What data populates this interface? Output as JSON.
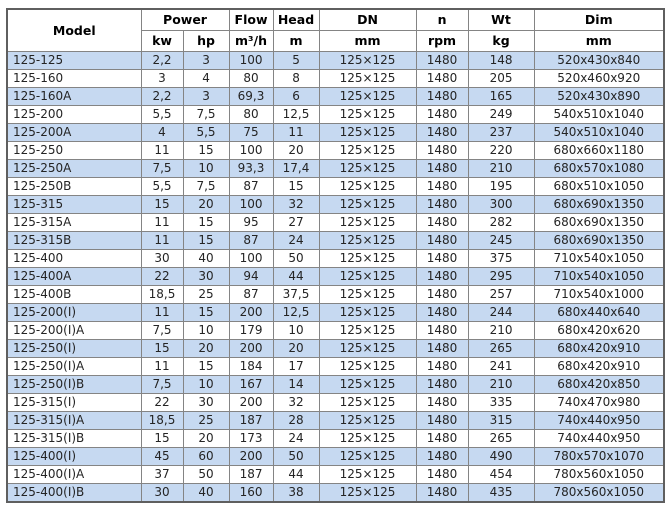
{
  "colors": {
    "row_alt_blue": "#c6d9f1",
    "row_white": "#ffffff",
    "border_inner": "#848484",
    "border_outer": "#5f5f5f",
    "header_text": "#000000",
    "body_text": "#242424"
  },
  "table": {
    "header": {
      "model": "Model",
      "power": "Power",
      "flow": "Flow",
      "head": "Head",
      "dn": "DN",
      "n": "n",
      "wt": "Wt",
      "dim": "Dim",
      "kw": "kw",
      "hp": "hp",
      "flow_unit": "m³/h",
      "head_unit": "m",
      "dn_unit": "mm",
      "n_unit": "rpm",
      "wt_unit": "kg",
      "dim_unit": "mm"
    },
    "rows": [
      [
        "125-125",
        "2,2",
        "3",
        "100",
        "5",
        "125×125",
        "1480",
        "148",
        "520x430x840"
      ],
      [
        "125-160",
        "3",
        "4",
        "80",
        "8",
        "125×125",
        "1480",
        "205",
        "520x460x920"
      ],
      [
        "125-160A",
        "2,2",
        "3",
        "69,3",
        "6",
        "125×125",
        "1480",
        "165",
        "520x430x890"
      ],
      [
        "125-200",
        "5,5",
        "7,5",
        "80",
        "12,5",
        "125×125",
        "1480",
        "249",
        "540x510x1040"
      ],
      [
        "125-200A",
        "4",
        "5,5",
        "75",
        "11",
        "125×125",
        "1480",
        "237",
        "540x510x1040"
      ],
      [
        "125-250",
        "11",
        "15",
        "100",
        "20",
        "125×125",
        "1480",
        "220",
        "680x660x1180"
      ],
      [
        "125-250A",
        "7,5",
        "10",
        "93,3",
        "17,4",
        "125×125",
        "1480",
        "210",
        "680x570x1080"
      ],
      [
        "125-250B",
        "5,5",
        "7,5",
        "87",
        "15",
        "125×125",
        "1480",
        "195",
        "680x510x1050"
      ],
      [
        "125-315",
        "15",
        "20",
        "100",
        "32",
        "125×125",
        "1480",
        "300",
        "680x690x1350"
      ],
      [
        "125-315A",
        "11",
        "15",
        "95",
        "27",
        "125×125",
        "1480",
        "282",
        "680x690x1350"
      ],
      [
        "125-315B",
        "11",
        "15",
        "87",
        "24",
        "125×125",
        "1480",
        "245",
        "680x690x1350"
      ],
      [
        "125-400",
        "30",
        "40",
        "100",
        "50",
        "125×125",
        "1480",
        "375",
        "710x540x1050"
      ],
      [
        "125-400A",
        "22",
        "30",
        "94",
        "44",
        "125×125",
        "1480",
        "295",
        "710x540x1050"
      ],
      [
        "125-400B",
        "18,5",
        "25",
        "87",
        "37,5",
        "125×125",
        "1480",
        "257",
        "710x540x1000"
      ],
      [
        "125-200(I)",
        "11",
        "15",
        "200",
        "12,5",
        "125×125",
        "1480",
        "244",
        "680x440x640"
      ],
      [
        "125-200(I)A",
        "7,5",
        "10",
        "179",
        "10",
        "125×125",
        "1480",
        "210",
        "680x420x620"
      ],
      [
        "125-250(I)",
        "15",
        "20",
        "200",
        "20",
        "125×125",
        "1480",
        "265",
        "680x420x910"
      ],
      [
        "125-250(I)A",
        "11",
        "15",
        "184",
        "17",
        "125×125",
        "1480",
        "241",
        "680x420x910"
      ],
      [
        "125-250(I)B",
        "7,5",
        "10",
        "167",
        "14",
        "125×125",
        "1480",
        "210",
        "680x420x850"
      ],
      [
        "125-315(I)",
        "22",
        "30",
        "200",
        "32",
        "125×125",
        "1480",
        "335",
        "740x470x980"
      ],
      [
        "125-315(I)A",
        "18,5",
        "25",
        "187",
        "28",
        "125×125",
        "1480",
        "315",
        "740x440x950"
      ],
      [
        "125-315(I)B",
        "15",
        "20",
        "173",
        "24",
        "125×125",
        "1480",
        "265",
        "740x440x950"
      ],
      [
        "125-400(I)",
        "45",
        "60",
        "200",
        "50",
        "125×125",
        "1480",
        "490",
        "780x570x1070"
      ],
      [
        "125-400(I)A",
        "37",
        "50",
        "187",
        "44",
        "125×125",
        "1480",
        "454",
        "780x560x1050"
      ],
      [
        "125-400(I)B",
        "30",
        "40",
        "160",
        "38",
        "125×125",
        "1480",
        "435",
        "780x560x1050"
      ]
    ]
  }
}
